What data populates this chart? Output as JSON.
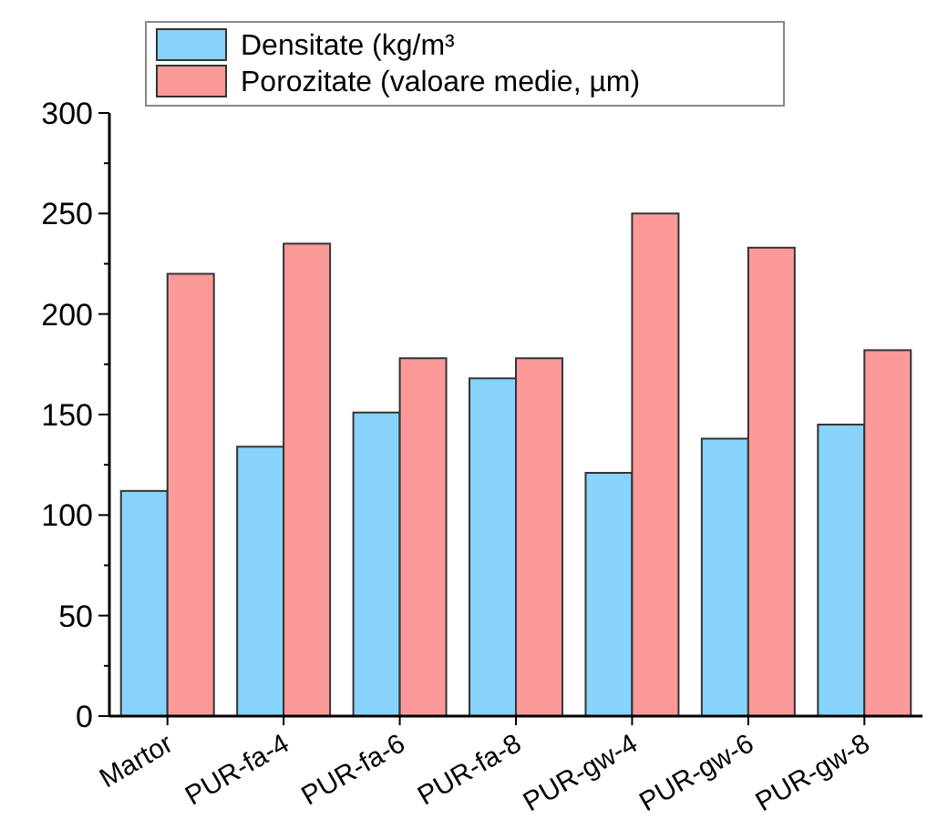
{
  "chart_data": {
    "type": "bar",
    "categories": [
      "Martor",
      "PUR-fa-4",
      "PUR-fa-6",
      "PUR-fa-8",
      "PUR-gw-4",
      "PUR-gw-6",
      "PUR-gw-8"
    ],
    "series": [
      {
        "name": "Densitate (kg/m³",
        "color": "#87d3fb",
        "values": [
          112,
          134,
          151,
          168,
          121,
          138,
          145
        ]
      },
      {
        "name": "Porozitate (valoare medie, µm)",
        "color": "#fc9a9a",
        "values": [
          220,
          235,
          178,
          178,
          250,
          233,
          182
        ]
      }
    ],
    "ylim": [
      0,
      300
    ],
    "yticks": [
      0,
      {
        "value": 25,
        "label": null
      },
      50,
      {
        "value": 75,
        "label": null
      },
      100,
      {
        "value": 125,
        "label": null
      },
      150,
      {
        "value": 175,
        "label": null
      },
      200,
      {
        "value": 225,
        "label": null
      },
      250,
      {
        "value": 275,
        "label": null
      },
      300
    ],
    "grid": false,
    "legend": "top"
  }
}
